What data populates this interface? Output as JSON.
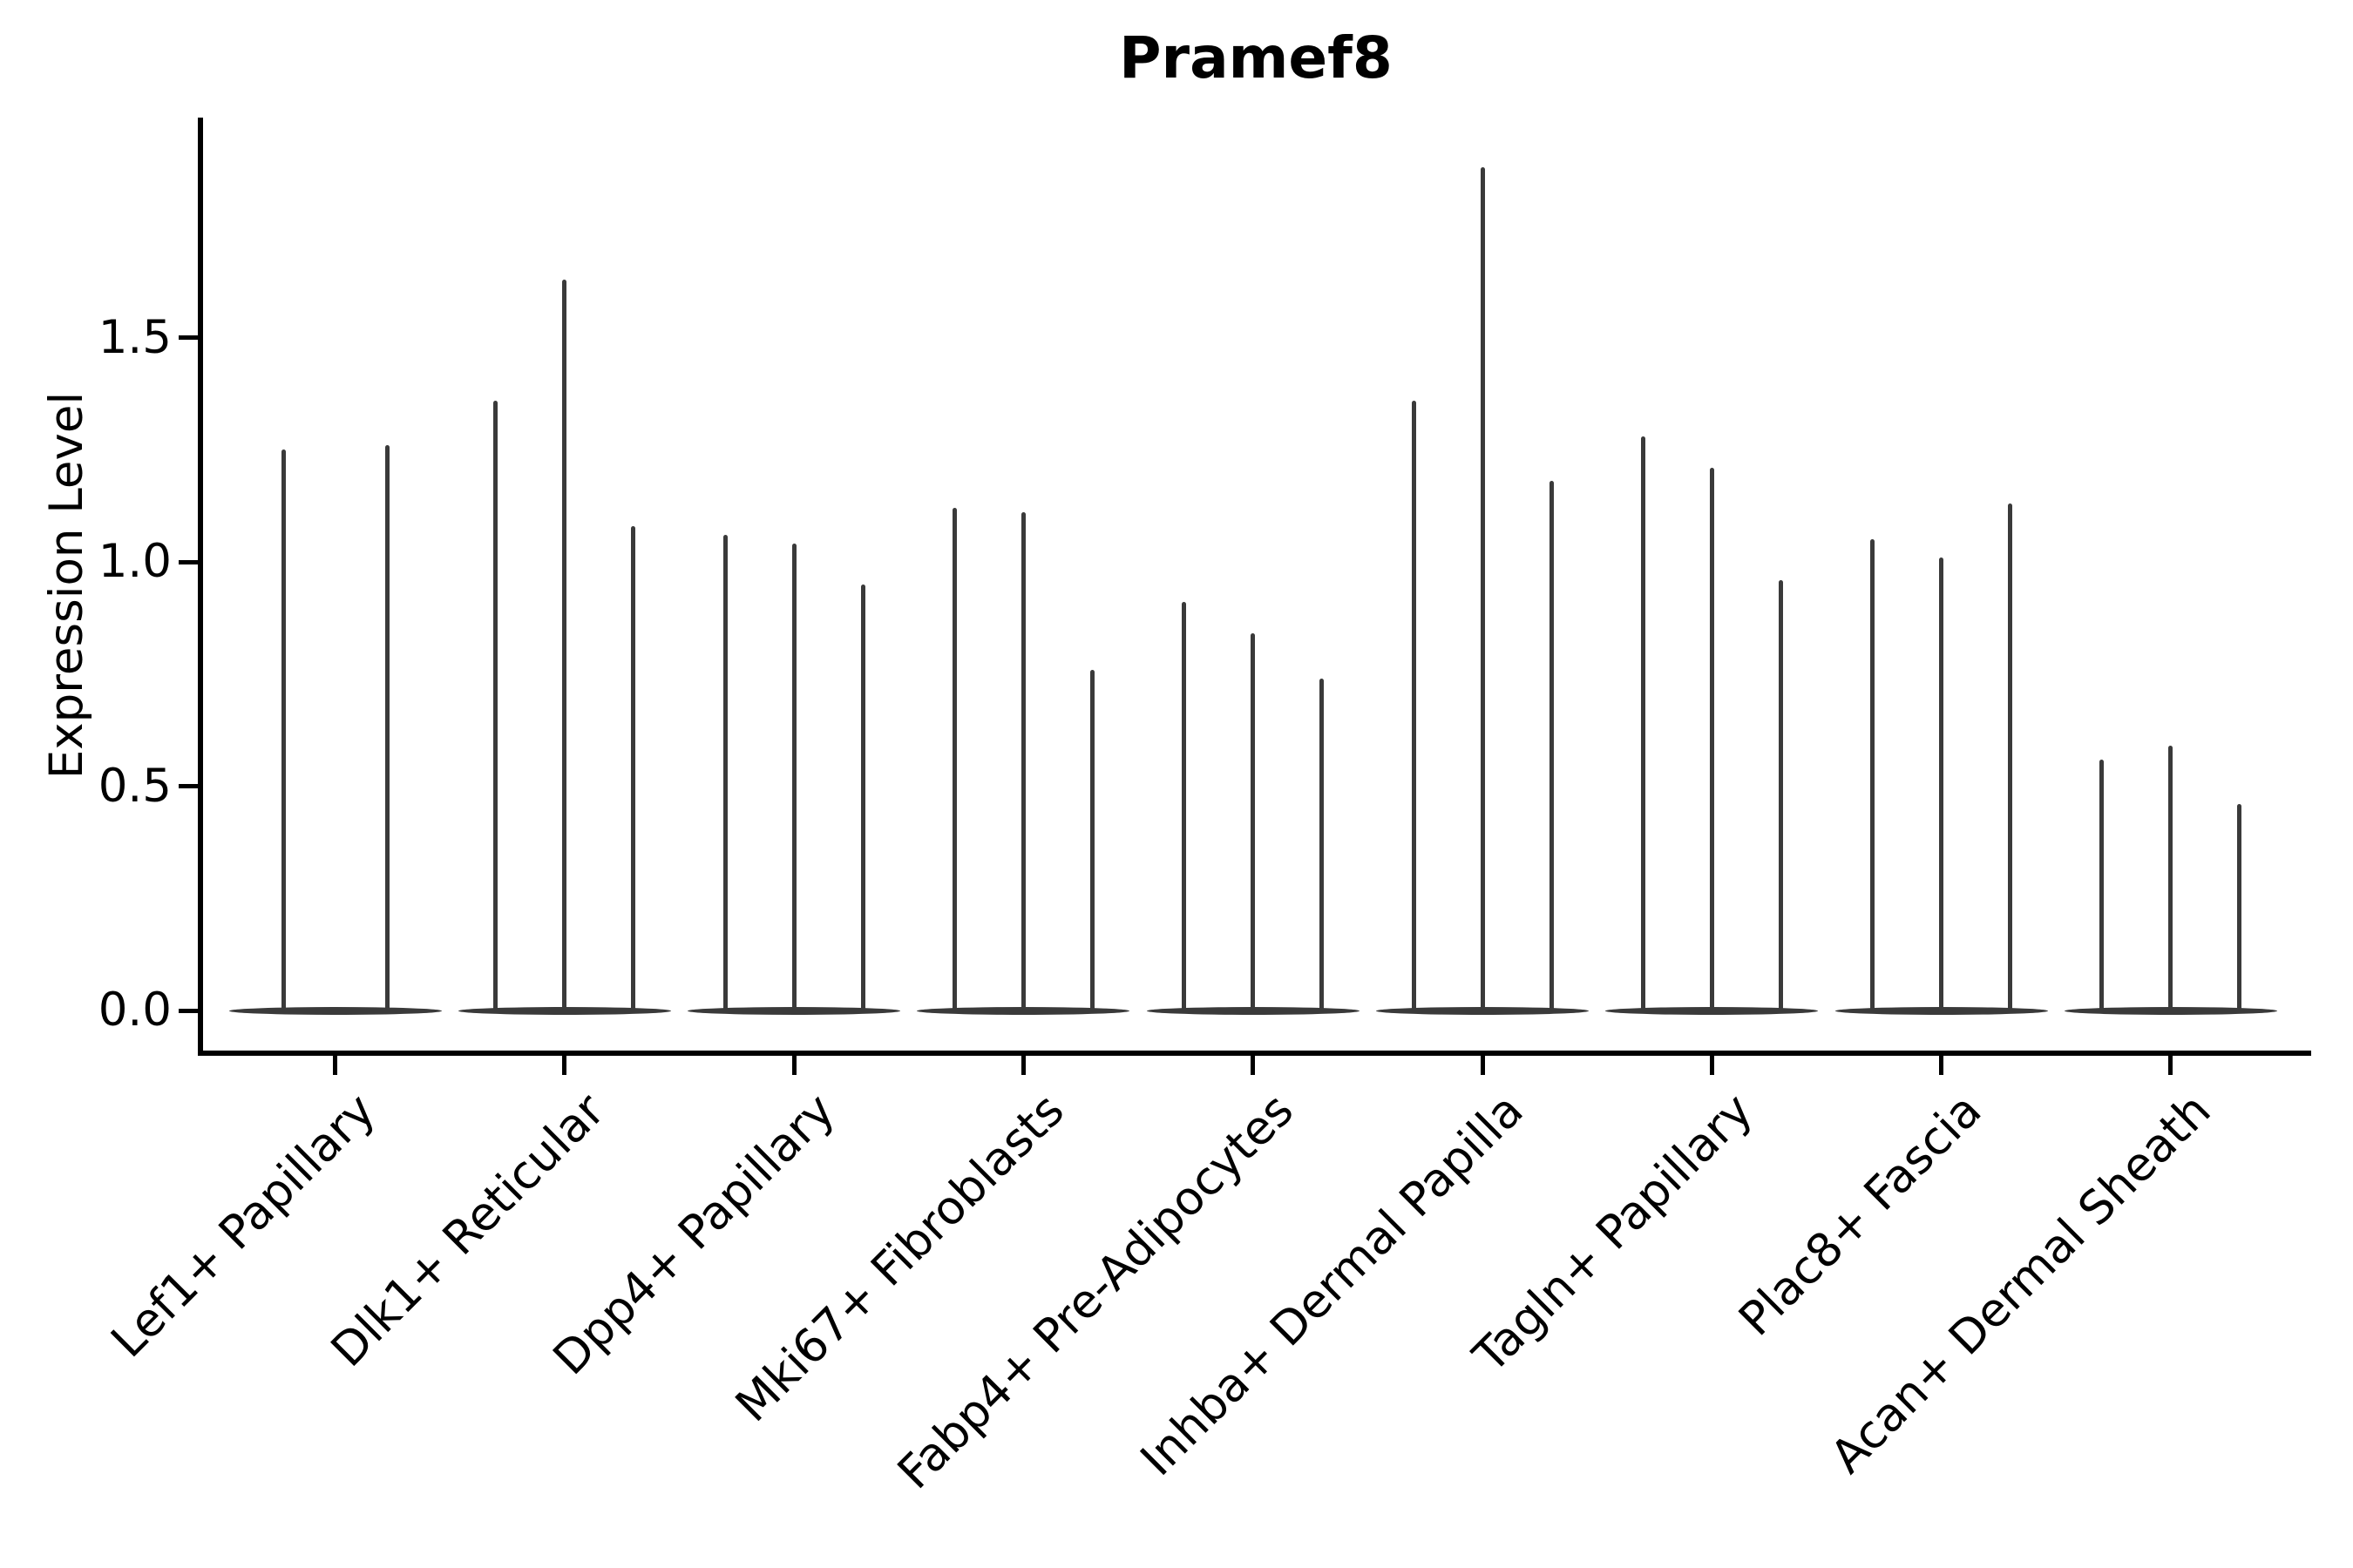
{
  "title": "Pramef8",
  "chart_data": {
    "type": "violin",
    "title": "Pramef8",
    "ylabel": "Expression Level",
    "xlabel": "",
    "ylim": [
      0,
      1.99
    ],
    "y_tick_values": [
      0.0,
      0.5,
      1.0,
      1.5
    ],
    "y_tick_labels": [
      "0.0",
      "0.5",
      "1.0",
      "1.5"
    ],
    "legend": "none",
    "grid": "off",
    "categories": [
      "Lef1+ Papillary",
      "Dlk1+ Reticular",
      "Dpp4+ Papillary",
      "Mki67+ Fibroblasts",
      "Fabp4+ Pre-Adipocytes",
      "Inhba+ Dermal Papilla",
      "Tagln+ Papillary",
      "Plac8+ Fascia",
      "Acan+ Dermal Sheath"
    ],
    "groups": [
      {
        "category": "Lef1+ Papillary",
        "violin_max_values": [
          1.25,
          1.26
        ]
      },
      {
        "category": "Dlk1+ Reticular",
        "violin_max_values": [
          1.36,
          1.63,
          1.08
        ]
      },
      {
        "category": "Dpp4+ Papillary",
        "violin_max_values": [
          1.06,
          1.04,
          0.95
        ]
      },
      {
        "category": "Mki67+ Fibroblasts",
        "violin_max_values": [
          1.12,
          1.11,
          0.76
        ]
      },
      {
        "category": "Fabp4+ Pre-Adipocytes",
        "violin_max_values": [
          0.91,
          0.84,
          0.74
        ]
      },
      {
        "category": "Inhba+ Dermal Papilla",
        "violin_max_values": [
          1.36,
          1.88,
          1.18
        ]
      },
      {
        "category": "Tagln+ Papillary",
        "violin_max_values": [
          1.28,
          1.21,
          0.96
        ]
      },
      {
        "category": "Plac8+ Fascia",
        "violin_max_values": [
          1.05,
          1.01,
          1.13
        ]
      },
      {
        "category": "Acan+ Dermal Sheath",
        "violin_max_values": [
          0.56,
          0.59,
          0.46
        ]
      }
    ],
    "violin_shape_note": "Each violin has a wide flat density mass at expression 0 and a thin vertical density spike rising to its listed maximum value.",
    "colors": {
      "violin": "#3a3a3a",
      "axis": "#000000",
      "text": "#000000",
      "background": "#ffffff"
    }
  }
}
